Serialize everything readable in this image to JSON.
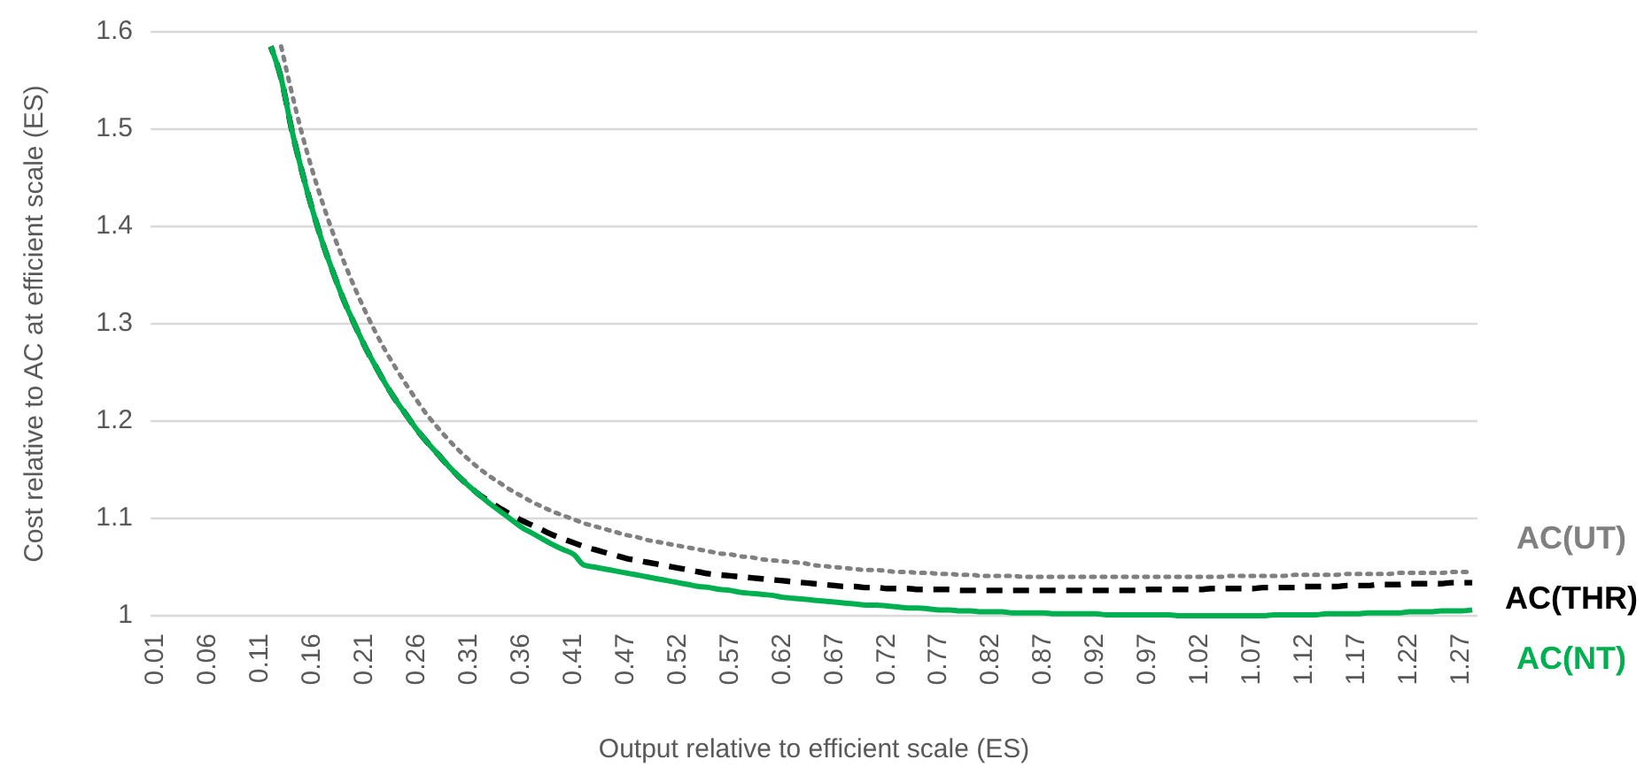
{
  "chart_data": {
    "type": "line",
    "xlabel": "Output relative to efficient scale (ES)",
    "ylabel": "Cost relative to AC at efficient scale (ES)",
    "categories": [
      "0.01",
      null,
      null,
      null,
      null,
      "0.06",
      null,
      null,
      null,
      null,
      "0.11",
      null,
      null,
      null,
      null,
      "0.16",
      null,
      null,
      null,
      null,
      "0.21",
      null,
      null,
      null,
      null,
      "0.26",
      null,
      null,
      null,
      null,
      "0.31",
      null,
      null,
      null,
      null,
      "0.36",
      null,
      null,
      null,
      null,
      "0.41",
      null,
      null,
      null,
      null,
      "0.47",
      null,
      null,
      null,
      null,
      "0.52",
      null,
      null,
      null,
      null,
      "0.57",
      null,
      null,
      null,
      null,
      "0.62",
      null,
      null,
      null,
      null,
      "0.67",
      null,
      null,
      null,
      null,
      "0.72",
      null,
      null,
      null,
      null,
      "0.77",
      null,
      null,
      null,
      null,
      "0.82",
      null,
      null,
      null,
      null,
      "0.87",
      null,
      null,
      null,
      null,
      "0.92",
      null,
      null,
      null,
      null,
      "0.97",
      null,
      null,
      null,
      null,
      "1.02",
      null,
      null,
      null,
      null,
      "1.07",
      null,
      null,
      null,
      null,
      "1.12",
      null,
      null,
      null,
      null,
      "1.17",
      null,
      null,
      null,
      null,
      "1.22",
      null,
      null,
      null,
      null,
      "1.27",
      null
    ],
    "ylim": [
      1,
      1.6
    ],
    "yticks": [
      {
        "value": 1,
        "label": "1"
      },
      1.1,
      1.2,
      1.3,
      1.4,
      1.5,
      1.6
    ],
    "grid": "y",
    "legend": "right",
    "series": [
      {
        "name": "AC(UT)",
        "color": "#808080",
        "line_style": "dotted",
        "values": [
          null,
          null,
          null,
          null,
          null,
          null,
          null,
          null,
          null,
          null,
          null,
          null,
          1.585,
          1.538,
          1.495,
          1.457,
          1.423,
          1.392,
          1.364,
          1.338,
          1.314,
          1.292,
          1.272,
          1.254,
          1.237,
          1.221,
          1.206,
          1.193,
          1.181,
          1.17,
          1.16,
          1.151,
          1.143,
          1.136,
          1.129,
          1.123,
          1.117,
          1.112,
          1.107,
          1.103,
          1.099,
          1.095,
          1.092,
          1.089,
          1.086,
          1.083,
          1.081,
          1.078,
          1.076,
          1.074,
          1.072,
          1.07,
          1.068,
          1.066,
          1.064,
          1.063,
          1.061,
          1.06,
          1.058,
          1.057,
          1.056,
          1.055,
          1.054,
          1.052,
          1.051,
          1.05,
          1.049,
          1.048,
          1.047,
          1.047,
          1.046,
          1.045,
          1.045,
          1.044,
          1.044,
          1.043,
          1.043,
          1.042,
          1.042,
          1.041,
          1.041,
          1.041,
          1.041,
          1.04,
          1.04,
          1.04,
          1.04,
          1.04,
          1.04,
          1.04,
          1.04,
          1.04,
          1.04,
          1.04,
          1.04,
          1.04,
          1.04,
          1.04,
          1.04,
          1.04,
          1.04,
          1.04,
          1.04,
          1.041,
          1.041,
          1.041,
          1.041,
          1.041,
          1.041,
          1.042,
          1.042,
          1.042,
          1.042,
          1.042,
          1.043,
          1.043,
          1.043,
          1.043,
          1.043,
          1.044,
          1.044,
          1.044,
          1.044,
          1.044,
          1.045,
          1.045,
          1.045
        ]
      },
      {
        "name": "AC(THR)",
        "color": "#000000",
        "line_style": "dashed",
        "values": [
          null,
          null,
          null,
          null,
          null,
          null,
          null,
          null,
          null,
          null,
          null,
          1.585,
          1.552,
          1.5,
          1.456,
          1.417,
          1.382,
          1.352,
          1.324,
          1.3,
          1.277,
          1.257,
          1.238,
          1.221,
          1.206,
          1.191,
          1.178,
          1.166,
          1.154,
          1.143,
          1.133,
          1.124,
          1.117,
          1.11,
          1.104,
          1.098,
          1.093,
          1.088,
          1.083,
          1.079,
          1.075,
          1.071,
          1.068,
          1.065,
          1.062,
          1.059,
          1.057,
          1.055,
          1.053,
          1.051,
          1.049,
          1.047,
          1.045,
          1.043,
          1.042,
          1.041,
          1.04,
          1.039,
          1.038,
          1.037,
          1.036,
          1.035,
          1.034,
          1.033,
          1.032,
          1.031,
          1.03,
          1.03,
          1.029,
          1.029,
          1.028,
          1.028,
          1.028,
          1.027,
          1.027,
          1.027,
          1.027,
          1.026,
          1.026,
          1.026,
          1.026,
          1.026,
          1.026,
          1.026,
          1.026,
          1.026,
          1.026,
          1.026,
          1.026,
          1.026,
          1.026,
          1.026,
          1.026,
          1.026,
          1.026,
          1.027,
          1.027,
          1.027,
          1.027,
          1.027,
          1.027,
          1.028,
          1.028,
          1.028,
          1.028,
          1.028,
          1.029,
          1.029,
          1.029,
          1.029,
          1.03,
          1.03,
          1.03,
          1.03,
          1.031,
          1.031,
          1.031,
          1.032,
          1.032,
          1.032,
          1.033,
          1.033,
          1.033,
          1.033,
          1.034,
          1.034,
          1.034
        ]
      },
      {
        "name": "AC(NT)",
        "color": "#00b050",
        "line_style": "solid",
        "values": [
          null,
          null,
          null,
          null,
          null,
          null,
          null,
          null,
          null,
          null,
          null,
          1.585,
          1.552,
          1.5,
          1.456,
          1.417,
          1.382,
          1.352,
          1.324,
          1.3,
          1.277,
          1.257,
          1.238,
          1.221,
          1.206,
          1.191,
          1.178,
          1.166,
          1.154,
          1.143,
          1.133,
          1.124,
          1.115,
          1.107,
          1.099,
          1.091,
          1.085,
          1.079,
          1.073,
          1.068,
          1.063,
          1.052,
          1.05,
          1.048,
          1.046,
          1.044,
          1.042,
          1.04,
          1.038,
          1.036,
          1.034,
          1.032,
          1.03,
          1.029,
          1.027,
          1.026,
          1.024,
          1.023,
          1.022,
          1.021,
          1.019,
          1.018,
          1.017,
          1.016,
          1.015,
          1.014,
          1.013,
          1.012,
          1.011,
          1.011,
          1.01,
          1.009,
          1.008,
          1.008,
          1.007,
          1.006,
          1.006,
          1.005,
          1.005,
          1.004,
          1.004,
          1.004,
          1.003,
          1.003,
          1.003,
          1.003,
          1.002,
          1.002,
          1.002,
          1.002,
          1.002,
          1.001,
          1.001,
          1.001,
          1.001,
          1.001,
          1.001,
          1.001,
          1.0,
          1.0,
          1.0,
          1.0,
          1.0,
          1.0,
          1.0,
          1.0,
          1.0,
          1.001,
          1.001,
          1.001,
          1.001,
          1.001,
          1.002,
          1.002,
          1.002,
          1.002,
          1.003,
          1.003,
          1.003,
          1.003,
          1.004,
          1.004,
          1.004,
          1.005,
          1.005,
          1.005,
          1.006
        ]
      }
    ]
  }
}
